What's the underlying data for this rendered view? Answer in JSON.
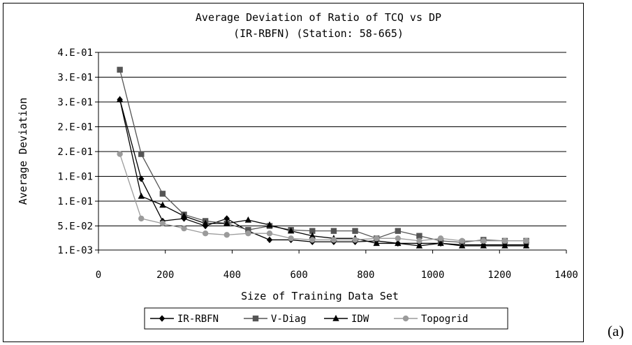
{
  "chart_data": {
    "type": "line",
    "title_lines": [
      "Average Deviation of Ratio of TCQ vs DP",
      "(IR-RBFN) (Station: 58-665)"
    ],
    "xlabel": "Size of Training Data Set",
    "ylabel": "Average Deviation",
    "xlim": [
      0,
      1400
    ],
    "xticks": [
      0,
      200,
      400,
      600,
      800,
      1000,
      1200,
      1400
    ],
    "ylim": [
      0.0015,
      0.4
    ],
    "yticks": [
      0.0015,
      0.05,
      0.1,
      0.15,
      0.2,
      0.25,
      0.3,
      0.35,
      0.4
    ],
    "ytick_labels": [
      "1.E-03",
      "5.E-02",
      "1.E-01",
      "1.E-01",
      "2.E-01",
      "2.E-01",
      "3.E-01",
      "3.E-01",
      "4.E-01"
    ],
    "grid": "horizontal",
    "legend_position": "bottom",
    "x": [
      64,
      128,
      192,
      256,
      320,
      384,
      448,
      512,
      576,
      640,
      704,
      768,
      832,
      896,
      960,
      1024,
      1088,
      1152,
      1216,
      1280
    ],
    "series": [
      {
        "name": "IR-RBFN",
        "marker": "diamond",
        "color": "#000000",
        "values": [
          0.305,
          0.145,
          0.06,
          0.065,
          0.05,
          0.065,
          0.04,
          0.022,
          0.022,
          0.018,
          0.018,
          0.018,
          0.02,
          0.015,
          0.015,
          0.015,
          0.012,
          0.012,
          0.012,
          0.012
        ]
      },
      {
        "name": "V-Diag",
        "marker": "square",
        "color": "#555555",
        "values": [
          0.365,
          0.195,
          0.115,
          0.073,
          0.06,
          0.055,
          0.042,
          0.05,
          0.042,
          0.04,
          0.04,
          0.04,
          0.025,
          0.04,
          0.03,
          0.02,
          0.017,
          0.022,
          0.02,
          0.02
        ]
      },
      {
        "name": "IDW",
        "marker": "triangle",
        "color": "#000000",
        "values": [
          0.305,
          0.11,
          0.092,
          0.07,
          0.055,
          0.055,
          0.062,
          0.052,
          0.04,
          0.03,
          0.025,
          0.025,
          0.015,
          0.015,
          0.01,
          0.015,
          0.01,
          0.01,
          0.01,
          0.01
        ]
      },
      {
        "name": "Topogrid",
        "marker": "circle",
        "color": "#9b9b9b",
        "values": [
          0.195,
          0.065,
          0.055,
          0.045,
          0.035,
          0.032,
          0.035,
          0.035,
          0.025,
          0.022,
          0.022,
          0.022,
          0.025,
          0.025,
          0.02,
          0.025,
          0.02,
          0.02,
          0.02,
          0.02
        ]
      }
    ]
  },
  "panel_label": "(a)"
}
